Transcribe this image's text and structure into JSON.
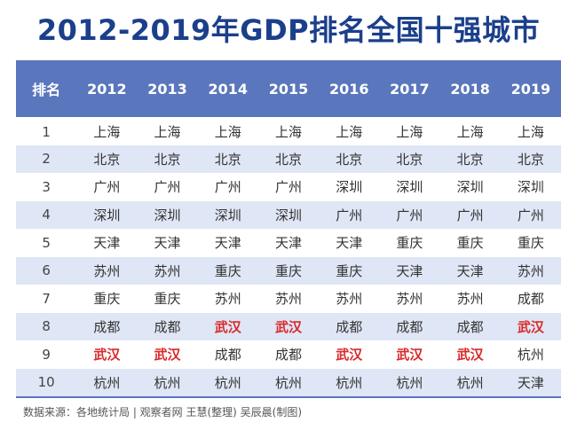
{
  "title": "2012-2019年GDP排名全国十强城市",
  "table": {
    "headers": [
      "排名",
      "2012",
      "2013",
      "2014",
      "2015",
      "2016",
      "2017",
      "2018",
      "2019"
    ],
    "rows": [
      {
        "rank": "1",
        "cities": [
          "上海",
          "上海",
          "上海",
          "上海",
          "上海",
          "上海",
          "上海",
          "上海"
        ]
      },
      {
        "rank": "2",
        "cities": [
          "北京",
          "北京",
          "北京",
          "北京",
          "北京",
          "北京",
          "北京",
          "北京"
        ]
      },
      {
        "rank": "3",
        "cities": [
          "广州",
          "广州",
          "广州",
          "广州",
          "深圳",
          "深圳",
          "深圳",
          "深圳"
        ]
      },
      {
        "rank": "4",
        "cities": [
          "深圳",
          "深圳",
          "深圳",
          "深圳",
          "广州",
          "广州",
          "广州",
          "广州"
        ]
      },
      {
        "rank": "5",
        "cities": [
          "天津",
          "天津",
          "天津",
          "天津",
          "天津",
          "重庆",
          "重庆",
          "重庆"
        ]
      },
      {
        "rank": "6",
        "cities": [
          "苏州",
          "苏州",
          "重庆",
          "重庆",
          "重庆",
          "天津",
          "天津",
          "苏州"
        ]
      },
      {
        "rank": "7",
        "cities": [
          "重庆",
          "重庆",
          "苏州",
          "苏州",
          "苏州",
          "苏州",
          "苏州",
          "成都"
        ]
      },
      {
        "rank": "8",
        "cities": [
          "成都",
          "成都",
          "武汉",
          "武汉",
          "成都",
          "成都",
          "成都",
          "武汉"
        ]
      },
      {
        "rank": "9",
        "cities": [
          "武汉",
          "武汉",
          "成都",
          "成都",
          "武汉",
          "武汉",
          "武汉",
          "杭州"
        ]
      },
      {
        "rank": "10",
        "cities": [
          "杭州",
          "杭州",
          "杭州",
          "杭州",
          "杭州",
          "杭州",
          "杭州",
          "天津"
        ]
      }
    ],
    "highlight_city": "武汉",
    "highlight_color": "#d92a2a",
    "header_color": "#5a76bd",
    "stripe_color": "#dfe6f5"
  },
  "footer": {
    "source": "数据来源：各地统计局  |  观察者网 王慧(整理) 吴辰晨(制图)"
  }
}
